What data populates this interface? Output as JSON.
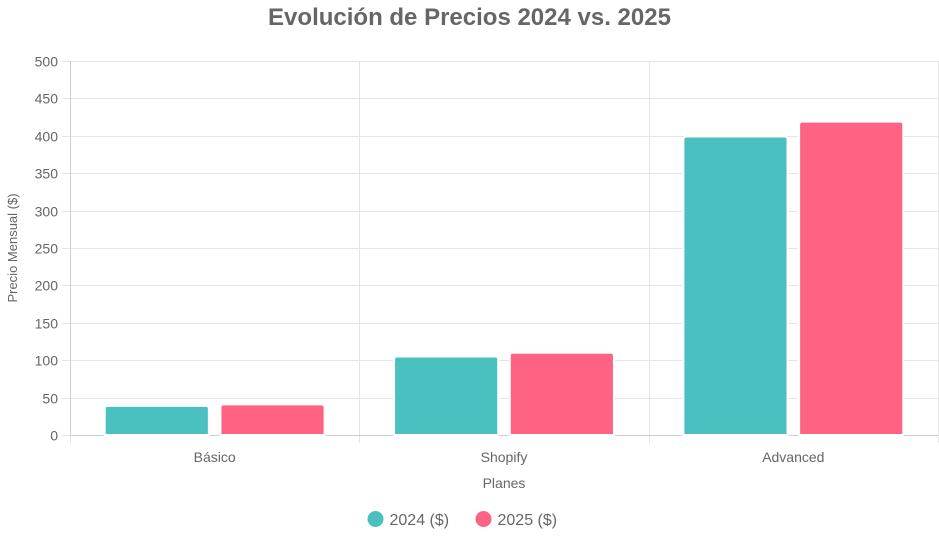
{
  "chart_data": {
    "type": "bar",
    "title": "Evolución de Precios 2024 vs. 2025",
    "xlabel": "Planes",
    "ylabel": "Precio Mensual ($)",
    "categories": [
      "Básico",
      "Shopify",
      "Advanced"
    ],
    "series": [
      {
        "name": "2024 ($)",
        "values": [
          39,
          105,
          399
        ],
        "color": "#4bc0c0"
      },
      {
        "name": "2025 ($)",
        "values": [
          41,
          110,
          419
        ],
        "color": "#ff6384"
      }
    ],
    "ylim": [
      0,
      500
    ],
    "yticks": [
      "0",
      "50",
      "100",
      "150",
      "200",
      "250",
      "300",
      "350",
      "400",
      "450",
      "500"
    ],
    "grid": true,
    "legend_position": "bottom"
  }
}
